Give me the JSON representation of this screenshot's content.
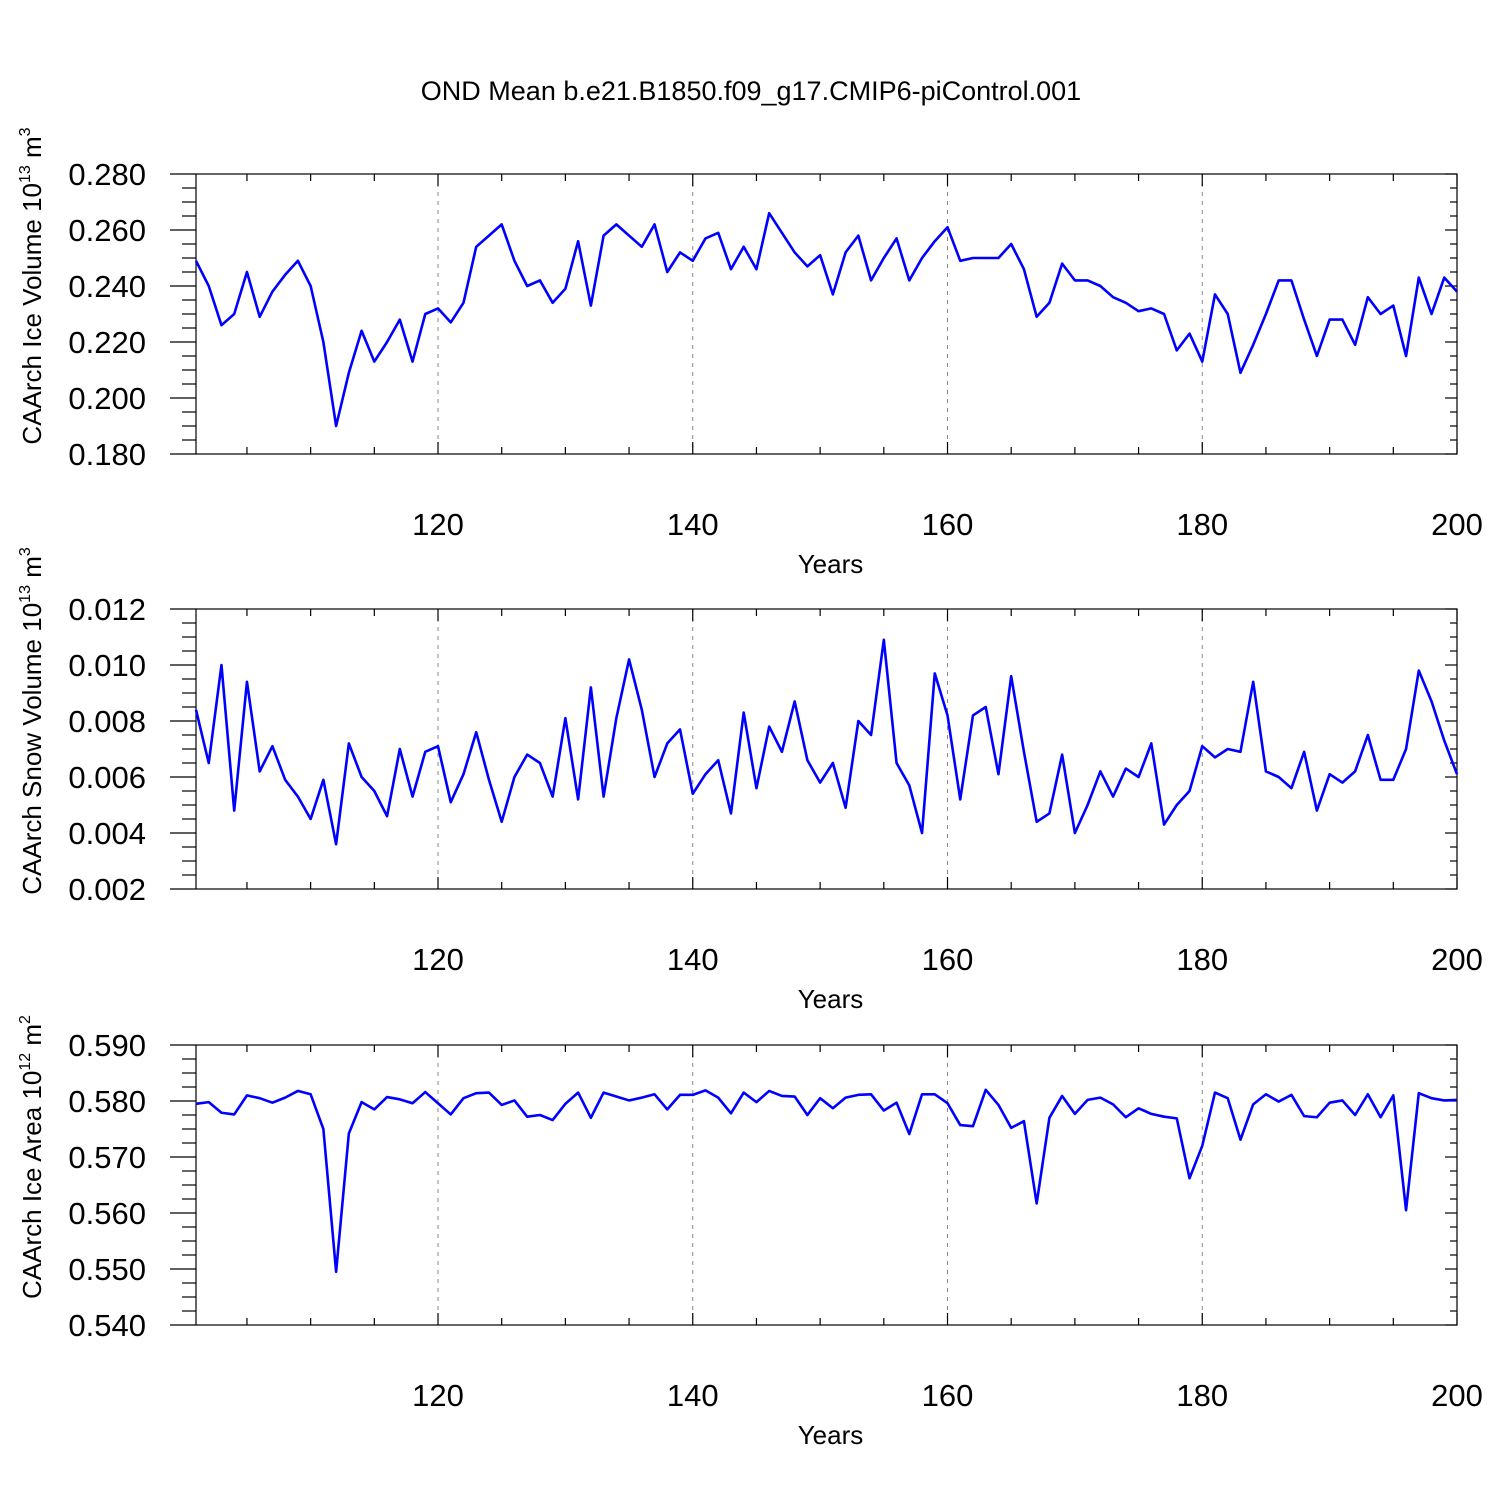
{
  "figure_title": "OND Mean b.e21.B1850.f09_g17.CMIP6-piControl.001",
  "chart_data": [
    {
      "type": "line",
      "title": "OND Mean b.e21.B1850.f09_g17.CMIP6-piControl.001",
      "xlabel": "Years",
      "ylabel": "CAArch Ice Volume 10^13 m^3",
      "ylabel_parts": {
        "main": "CAArch Ice Volume 10",
        "exp1": "13",
        "mid": " m",
        "exp2": "3"
      },
      "xlim": [
        101,
        200
      ],
      "ylim": [
        0.18,
        0.28
      ],
      "xticks": [
        120,
        140,
        160,
        180,
        200
      ],
      "yticks": [
        0.18,
        0.2,
        0.22,
        0.24,
        0.26,
        0.28
      ],
      "ytick_labels": [
        "0.180",
        "0.200",
        "0.220",
        "0.240",
        "0.260",
        "0.280"
      ],
      "x_minor_step": 5,
      "y_minor_step": 0.005,
      "grid_x": [
        120,
        140,
        160,
        180
      ],
      "x_start": 101,
      "series": [
        {
          "name": "CAArch Ice Volume",
          "color": "#0000ff",
          "values": [
            0.249,
            0.24,
            0.226,
            0.23,
            0.245,
            0.229,
            0.238,
            0.244,
            0.249,
            0.24,
            0.22,
            0.19,
            0.209,
            0.224,
            0.213,
            0.22,
            0.228,
            0.213,
            0.23,
            0.232,
            0.227,
            0.234,
            0.254,
            0.258,
            0.262,
            0.249,
            0.24,
            0.242,
            0.234,
            0.239,
            0.256,
            0.233,
            0.258,
            0.262,
            0.258,
            0.254,
            0.262,
            0.245,
            0.252,
            0.249,
            0.257,
            0.259,
            0.246,
            0.254,
            0.246,
            0.266,
            0.259,
            0.252,
            0.247,
            0.251,
            0.237,
            0.252,
            0.258,
            0.242,
            0.25,
            0.257,
            0.242,
            0.25,
            0.256,
            0.261,
            0.249,
            0.25,
            0.25,
            0.25,
            0.255,
            0.246,
            0.229,
            0.234,
            0.248,
            0.242,
            0.242,
            0.24,
            0.236,
            0.234,
            0.231,
            0.232,
            0.23,
            0.217,
            0.223,
            0.213,
            0.237,
            0.23,
            0.209,
            0.219,
            0.23,
            0.242,
            0.242,
            0.228,
            0.215,
            0.228,
            0.228,
            0.219,
            0.236,
            0.23,
            0.233,
            0.215,
            0.243,
            0.23,
            0.243,
            0.238
          ]
        }
      ]
    },
    {
      "type": "line",
      "xlabel": "Years",
      "ylabel": "CAArch Snow Volume 10^13 m^3",
      "ylabel_parts": {
        "main": "CAArch Snow Volume 10",
        "exp1": "13",
        "mid": " m",
        "exp2": "3"
      },
      "xlim": [
        101,
        200
      ],
      "ylim": [
        0.002,
        0.012
      ],
      "xticks": [
        120,
        140,
        160,
        180,
        200
      ],
      "yticks": [
        0.002,
        0.004,
        0.006,
        0.008,
        0.01,
        0.012
      ],
      "ytick_labels": [
        "0.002",
        "0.004",
        "0.006",
        "0.008",
        "0.010",
        "0.012"
      ],
      "x_minor_step": 5,
      "y_minor_step": 0.0005,
      "grid_x": [
        120,
        140,
        160,
        180
      ],
      "x_start": 101,
      "series": [
        {
          "name": "CAArch Snow Volume",
          "color": "#0000ff",
          "values": [
            0.0084,
            0.0065,
            0.01,
            0.0048,
            0.0094,
            0.0062,
            0.0071,
            0.0059,
            0.0053,
            0.0045,
            0.0059,
            0.0036,
            0.0072,
            0.006,
            0.0055,
            0.0046,
            0.007,
            0.0053,
            0.0069,
            0.0071,
            0.0051,
            0.0061,
            0.0076,
            0.0059,
            0.0044,
            0.006,
            0.0068,
            0.0065,
            0.0053,
            0.0081,
            0.0052,
            0.0092,
            0.0053,
            0.0081,
            0.0102,
            0.0084,
            0.006,
            0.0072,
            0.0077,
            0.0054,
            0.0061,
            0.0066,
            0.0047,
            0.0083,
            0.0056,
            0.0078,
            0.0069,
            0.0087,
            0.0066,
            0.0058,
            0.0065,
            0.0049,
            0.008,
            0.0075,
            0.0109,
            0.0065,
            0.0057,
            0.004,
            0.0097,
            0.0082,
            0.0052,
            0.0082,
            0.0085,
            0.0061,
            0.0096,
            0.0069,
            0.0044,
            0.0047,
            0.0068,
            0.004,
            0.005,
            0.0062,
            0.0053,
            0.0063,
            0.006,
            0.0072,
            0.0043,
            0.005,
            0.0055,
            0.0071,
            0.0067,
            0.007,
            0.0069,
            0.0094,
            0.0062,
            0.006,
            0.0056,
            0.0069,
            0.0048,
            0.0061,
            0.0058,
            0.0062,
            0.0075,
            0.0059,
            0.0059,
            0.007,
            0.0098,
            0.0087,
            0.0073,
            0.0061
          ]
        }
      ]
    },
    {
      "type": "line",
      "xlabel": "Years",
      "ylabel": "CAArch Ice Area 10^12 m^2",
      "ylabel_parts": {
        "main": "CAArch Ice Area 10",
        "exp1": "12",
        "mid": " m",
        "exp2": "2"
      },
      "xlim": [
        101,
        200
      ],
      "ylim": [
        0.54,
        0.59
      ],
      "xticks": [
        120,
        140,
        160,
        180,
        200
      ],
      "yticks": [
        0.54,
        0.55,
        0.56,
        0.57,
        0.58,
        0.59
      ],
      "ytick_labels": [
        "0.540",
        "0.550",
        "0.560",
        "0.570",
        "0.580",
        "0.590"
      ],
      "x_minor_step": 5,
      "y_minor_step": 0.0025,
      "grid_x": [
        120,
        140,
        160,
        180
      ],
      "x_start": 101,
      "series": [
        {
          "name": "CAArch Ice Area",
          "color": "#0000ff",
          "values": [
            0.5795,
            0.5798,
            0.5779,
            0.5776,
            0.581,
            0.5805,
            0.5797,
            0.5806,
            0.5818,
            0.5812,
            0.575,
            0.5495,
            0.5742,
            0.5798,
            0.5785,
            0.5807,
            0.5803,
            0.5796,
            0.5816,
            0.5796,
            0.5776,
            0.5805,
            0.5814,
            0.5815,
            0.5793,
            0.5801,
            0.5772,
            0.5775,
            0.5766,
            0.5795,
            0.5815,
            0.577,
            0.5815,
            0.5808,
            0.5801,
            0.5806,
            0.5812,
            0.5785,
            0.5811,
            0.5811,
            0.5819,
            0.5806,
            0.5778,
            0.5815,
            0.5798,
            0.5818,
            0.5809,
            0.5808,
            0.5775,
            0.5805,
            0.5787,
            0.5806,
            0.5811,
            0.5812,
            0.5783,
            0.5797,
            0.5741,
            0.5812,
            0.5812,
            0.5796,
            0.5757,
            0.5755,
            0.582,
            0.5793,
            0.5752,
            0.5764,
            0.5617,
            0.577,
            0.5809,
            0.5777,
            0.5802,
            0.5806,
            0.5794,
            0.5771,
            0.5787,
            0.5777,
            0.5772,
            0.5769,
            0.5662,
            0.572,
            0.5815,
            0.5805,
            0.5731,
            0.5794,
            0.5812,
            0.5799,
            0.5811,
            0.5773,
            0.5771,
            0.5797,
            0.5801,
            0.5775,
            0.5812,
            0.5771,
            0.581,
            0.5605,
            0.5814,
            0.5805,
            0.5801,
            0.5802
          ]
        }
      ]
    }
  ]
}
